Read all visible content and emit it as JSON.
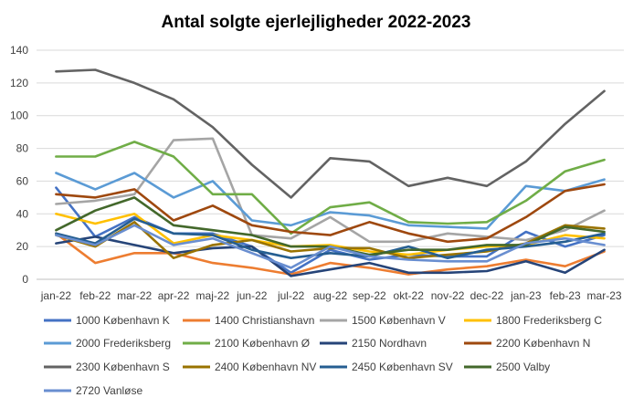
{
  "chart_data": {
    "type": "line",
    "title": "Antal solgte ejerlejligheder 2022-2023",
    "xlabel": "",
    "ylabel": "",
    "ylim": [
      0,
      140
    ],
    "yticks": [
      0,
      20,
      40,
      60,
      80,
      100,
      120,
      140
    ],
    "grid": true,
    "legend": "bottom",
    "categories": [
      "jan-22",
      "feb-22",
      "mar-22",
      "apr-22",
      "maj-22",
      "jun-22",
      "jul-22",
      "aug-22",
      "sep-22",
      "okt-22",
      "nov-22",
      "dec-22",
      "jan-23",
      "feb-23",
      "mar-23"
    ],
    "series": [
      {
        "name": "1000 København K",
        "color": "#4472c4",
        "values": [
          56,
          26,
          38,
          28,
          28,
          20,
          4,
          18,
          12,
          15,
          14,
          14,
          29,
          20,
          27
        ]
      },
      {
        "name": "1400 Christianshavn",
        "color": "#ed7d31",
        "values": [
          28,
          10,
          16,
          16,
          10,
          7,
          3,
          10,
          7,
          3,
          6,
          8,
          12,
          8,
          17
        ]
      },
      {
        "name": "1500 København V",
        "color": "#a5a5a5",
        "values": [
          46,
          48,
          52,
          85,
          86,
          27,
          25,
          38,
          23,
          23,
          28,
          26,
          24,
          30,
          42
        ]
      },
      {
        "name": "1800 Frederiksberg C",
        "color": "#ffc000",
        "values": [
          40,
          34,
          40,
          22,
          27,
          24,
          20,
          21,
          17,
          15,
          18,
          20,
          21,
          27,
          25
        ]
      },
      {
        "name": "2000 Frederiksberg",
        "color": "#5b9bd5",
        "values": [
          65,
          55,
          65,
          50,
          60,
          36,
          33,
          41,
          39,
          33,
          32,
          31,
          57,
          54,
          61
        ]
      },
      {
        "name": "2100 København Ø",
        "color": "#70ad47",
        "values": [
          75,
          75,
          84,
          75,
          52,
          52,
          28,
          44,
          47,
          35,
          34,
          35,
          48,
          66,
          73
        ]
      },
      {
        "name": "2150 Nordhavn",
        "color": "#264478",
        "values": [
          22,
          26,
          21,
          16,
          19,
          20,
          2,
          6,
          10,
          4,
          4,
          5,
          11,
          4,
          18
        ]
      },
      {
        "name": "2200 København N",
        "color": "#9e480e",
        "values": [
          52,
          50,
          55,
          36,
          45,
          33,
          29,
          27,
          35,
          28,
          23,
          25,
          38,
          54,
          58
        ]
      },
      {
        "name": "2300 København S",
        "color": "#636363",
        "values": [
          127,
          128,
          120,
          110,
          93,
          70,
          50,
          74,
          72,
          57,
          62,
          57,
          72,
          95,
          115
        ]
      },
      {
        "name": "2400 København NV",
        "color": "#997300",
        "values": [
          27,
          20,
          35,
          13,
          21,
          24,
          17,
          19,
          19,
          13,
          15,
          17,
          22,
          33,
          31
        ]
      },
      {
        "name": "2450 København SV",
        "color": "#255e91",
        "values": [
          28,
          22,
          37,
          28,
          27,
          18,
          13,
          16,
          14,
          20,
          13,
          18,
          20,
          23,
          28
        ]
      },
      {
        "name": "2500 Valby",
        "color": "#43682b",
        "values": [
          30,
          42,
          50,
          33,
          30,
          27,
          20,
          20,
          15,
          18,
          18,
          21,
          21,
          32,
          29
        ]
      },
      {
        "name": "2720 Vanløse",
        "color": "#698ed0",
        "values": [
          27,
          21,
          33,
          21,
          25,
          16,
          7,
          20,
          14,
          12,
          11,
          11,
          22,
          25,
          21
        ]
      }
    ]
  }
}
